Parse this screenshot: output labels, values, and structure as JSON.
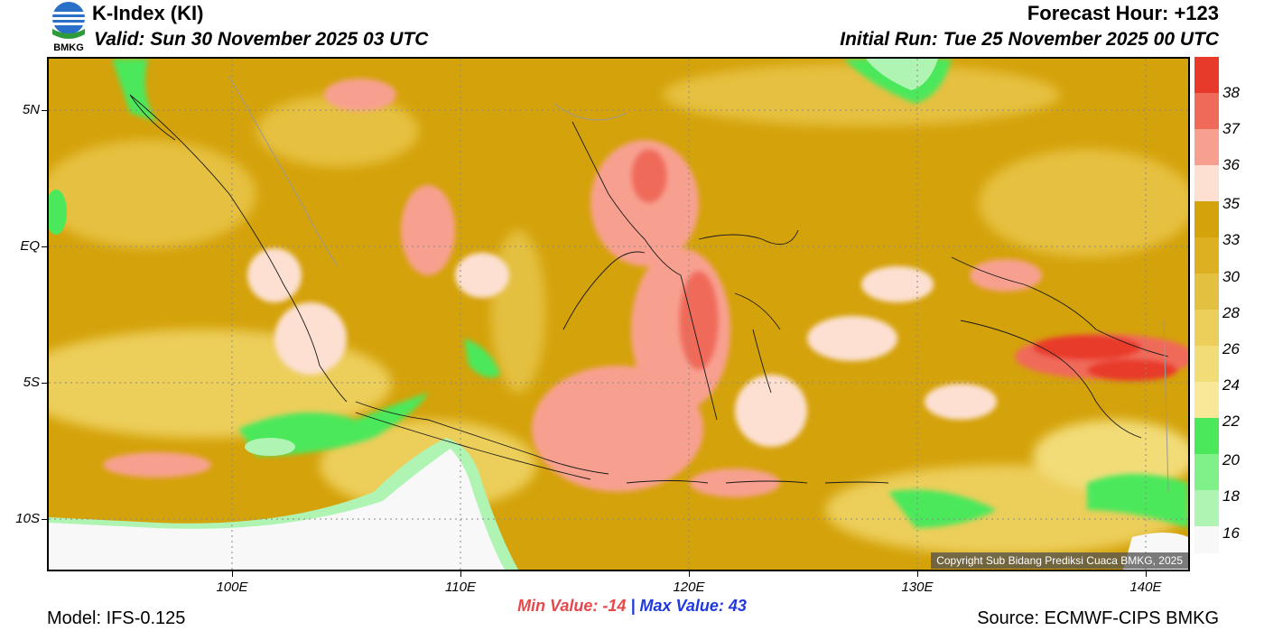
{
  "header": {
    "title": "K-Index (KI)",
    "valid": "Valid: Sun 30 November 2025 03 UTC",
    "forecast_hour": "Forecast Hour: +123",
    "initial_run": "Initial Run: Tue 25 November 2025 00 UTC",
    "logo_text": "BMKG"
  },
  "map": {
    "lat_labels": [
      "5N",
      "EQ",
      "5S",
      "10S"
    ],
    "lon_labels": [
      "100E",
      "110E",
      "120E",
      "130E",
      "140E"
    ],
    "copyright": "Copyright Sub Bidang Prediksi Cuaca BMKG, 2025"
  },
  "colorbar": {
    "labels": [
      "38",
      "37",
      "36",
      "35",
      "33",
      "30",
      "28",
      "26",
      "24",
      "22",
      "20",
      "18",
      "16"
    ],
    "colors": [
      "#e83a2a",
      "#f06a5a",
      "#f8a090",
      "#fde0d2",
      "#d4a20a",
      "#ddb022",
      "#e4c040",
      "#ecce5a",
      "#f2dc78",
      "#f8e898",
      "#4ce85c",
      "#80f088",
      "#b0f4b4",
      "#f8f8f8"
    ]
  },
  "footer": {
    "min_label": "Min Value:",
    "min_value": "-14",
    "separator": "|",
    "max_label": "Max Value:",
    "max_value": "43",
    "model": "Model: IFS-0.125",
    "source": "Source: ECMWF-CIPS BMKG"
  }
}
